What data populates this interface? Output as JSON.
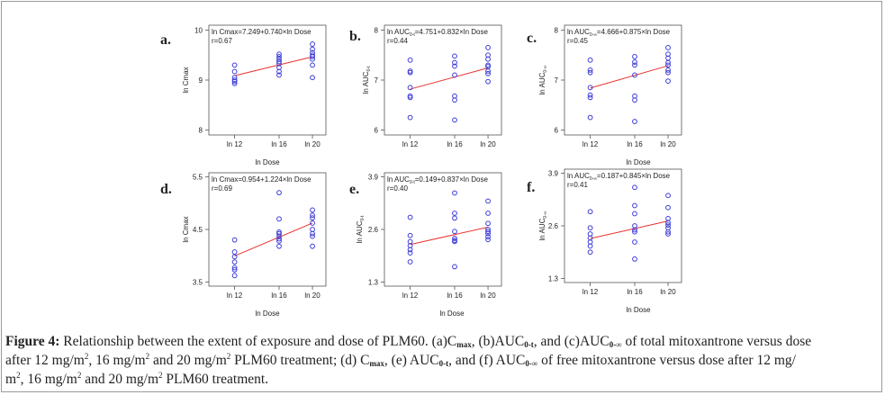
{
  "colors": {
    "point": "#3b3bd6",
    "fit_line": "#e8322e",
    "frame": "#9a9a9a",
    "axis": "#555555",
    "text": "#222222"
  },
  "chart_data": [
    {
      "panel_label": "a.",
      "type": "scatter",
      "equation_parts": [
        "ln Cmax=7.249+0.740×ln Dose"
      ],
      "r_text": "r=0.67",
      "xlabel": "ln Dose",
      "ylabel_parts": [
        "ln Cmax"
      ],
      "x_ticks": [
        "ln 12",
        "ln 16",
        "ln 20"
      ],
      "y_ticks": [
        8,
        9,
        10
      ],
      "ylim": [
        7.9,
        10.1
      ],
      "fit": {
        "intercept": 7.249,
        "slope": 0.74
      },
      "points": [
        {
          "dose": "ln 12",
          "values": [
            9.3,
            9.17,
            9.05,
            9.0,
            8.97,
            8.93
          ]
        },
        {
          "dose": "ln 16",
          "values": [
            9.52,
            9.47,
            9.42,
            9.37,
            9.33,
            9.25,
            9.17,
            9.1
          ]
        },
        {
          "dose": "ln 20",
          "values": [
            9.72,
            9.62,
            9.55,
            9.5,
            9.47,
            9.42,
            9.3,
            9.05
          ]
        }
      ]
    },
    {
      "panel_label": "b.",
      "type": "scatter",
      "equation_parts": [
        "ln AUC",
        "0-t",
        "=4.751+0.832×ln Dose"
      ],
      "r_text": "r=0.44",
      "xlabel": "",
      "ylabel_parts": [
        "ln AUC",
        "0-t"
      ],
      "x_ticks": [
        "ln 12",
        "ln 16",
        "ln 20"
      ],
      "y_ticks": [
        6,
        7,
        8
      ],
      "ylim": [
        5.9,
        8.1
      ],
      "fit": {
        "intercept": 4.751,
        "slope": 0.832
      },
      "points": [
        {
          "dose": "ln 12",
          "values": [
            7.4,
            7.18,
            7.15,
            6.85,
            6.68,
            6.65,
            6.25
          ]
        },
        {
          "dose": "ln 16",
          "values": [
            7.48,
            7.35,
            7.28,
            7.1,
            6.68,
            6.6,
            6.2
          ]
        },
        {
          "dose": "ln 20",
          "values": [
            7.65,
            7.5,
            7.42,
            7.3,
            7.27,
            7.18,
            7.13,
            6.97
          ]
        }
      ]
    },
    {
      "panel_label": "c.",
      "type": "scatter",
      "equation_parts": [
        "ln AUC",
        "0-∞",
        "=4.666+0.875×ln Dose"
      ],
      "r_text": "r=0.45",
      "xlabel": "ln Dose",
      "ylabel_parts": [
        "ln AUC",
        "0-∞"
      ],
      "x_ticks": [
        "ln 12",
        "ln 16",
        "ln 20"
      ],
      "y_ticks": [
        6,
        7,
        8
      ],
      "ylim": [
        5.9,
        8.1
      ],
      "fit": {
        "intercept": 4.666,
        "slope": 0.875
      },
      "points": [
        {
          "dose": "ln 12",
          "values": [
            7.4,
            7.2,
            7.15,
            6.85,
            6.7,
            6.65,
            6.25
          ]
        },
        {
          "dose": "ln 16",
          "values": [
            7.47,
            7.36,
            7.3,
            7.1,
            6.68,
            6.6,
            6.17
          ]
        },
        {
          "dose": "ln 20",
          "values": [
            7.65,
            7.52,
            7.44,
            7.35,
            7.3,
            7.2,
            7.15,
            6.98
          ]
        }
      ]
    },
    {
      "panel_label": "d.",
      "type": "scatter",
      "equation_parts": [
        "ln Cmax=0.954+1.224×ln Dose"
      ],
      "r_text": "r=0.69",
      "xlabel": "ln Dose",
      "ylabel_parts": [
        "ln Cmax"
      ],
      "x_ticks": [
        "ln 12",
        "ln 16",
        "ln 20"
      ],
      "y_ticks": [
        3.5,
        4.5,
        5.5
      ],
      "ylim": [
        3.42,
        5.58
      ],
      "fit": {
        "intercept": 0.954,
        "slope": 1.224
      },
      "points": [
        {
          "dose": "ln 12",
          "values": [
            4.3,
            4.07,
            3.98,
            3.88,
            3.77,
            3.73,
            3.62
          ]
        },
        {
          "dose": "ln 16",
          "values": [
            5.2,
            4.7,
            4.45,
            4.42,
            4.37,
            4.32,
            4.28,
            4.18
          ]
        },
        {
          "dose": "ln 20",
          "values": [
            4.87,
            4.77,
            4.72,
            4.62,
            4.5,
            4.42,
            4.37,
            4.18
          ]
        }
      ]
    },
    {
      "panel_label": "e.",
      "type": "scatter",
      "equation_parts": [
        "ln AUC",
        "0-t",
        "=0.149+0.837×ln Dose"
      ],
      "r_text": "r=0.40",
      "xlabel": "ln Dose",
      "ylabel_parts": [
        "ln AUC",
        "0-t"
      ],
      "x_ticks": [
        "ln 12",
        "ln 16",
        "ln 20"
      ],
      "y_ticks": [
        1.3,
        2.6,
        3.9
      ],
      "ylim": [
        1.2,
        4.0
      ],
      "fit": {
        "intercept": 0.149,
        "slope": 0.837
      },
      "points": [
        {
          "dose": "ln 12",
          "values": [
            2.9,
            2.45,
            2.3,
            2.2,
            2.1,
            2.02,
            1.8
          ]
        },
        {
          "dose": "ln 16",
          "values": [
            3.5,
            3.0,
            2.88,
            2.55,
            2.38,
            2.33,
            2.3,
            1.68
          ]
        },
        {
          "dose": "ln 20",
          "values": [
            3.3,
            3.0,
            2.75,
            2.6,
            2.55,
            2.5,
            2.42,
            2.35
          ]
        }
      ]
    },
    {
      "panel_label": "f.",
      "type": "scatter",
      "equation_parts": [
        "ln AUC",
        "0-∞",
        "=0.187+0.845×ln Dose"
      ],
      "r_text": "r=0.41",
      "xlabel": "ln Dose",
      "ylabel_parts": [
        "ln AUC",
        "0-∞"
      ],
      "x_ticks": [
        "ln 12",
        "ln 16",
        "ln 20"
      ],
      "y_ticks": [
        1.3,
        2.6,
        3.9
      ],
      "ylim": [
        1.2,
        4.0
      ],
      "fit": {
        "intercept": 0.187,
        "slope": 0.845
      },
      "points": [
        {
          "dose": "ln 12",
          "values": [
            2.95,
            2.55,
            2.4,
            2.3,
            2.2,
            2.1,
            1.95
          ]
        },
        {
          "dose": "ln 16",
          "values": [
            3.55,
            3.1,
            2.9,
            2.6,
            2.5,
            2.45,
            2.2,
            1.78
          ]
        },
        {
          "dose": "ln 20",
          "values": [
            3.35,
            3.05,
            2.78,
            2.68,
            2.62,
            2.55,
            2.45,
            2.4
          ]
        }
      ]
    }
  ],
  "caption": {
    "figure_label": "Figure 4:",
    "t1": " Relationship between the extent of exposure and dose of PLM60. (a)C",
    "s1": "max",
    "t2": ", (b)AUC",
    "s2": "0-t",
    "t3": ", and (c)AUC",
    "s3": "0-∞",
    "t4": " of total mitoxantrone versus dose",
    "t5": "after 12 mg/m",
    "p1": "2",
    "t6": ", 16 mg/m",
    "p2": "2",
    "t7": " and 20 mg/m",
    "p3": "2",
    "t8": " PLM60 treatment; (d) C",
    "s4": "max",
    "t9": ", (e) AUC",
    "s5": "0-t",
    "t10": ", and (f) AUC",
    "s6": "0-∞",
    "t11": " of free mitoxantrone versus dose after 12 mg/",
    "t12": "m",
    "p4": "2",
    "t13": ", 16 mg/m",
    "p5": "2",
    "t14": " and 20 mg/m",
    "p6": "2",
    "t15": " PLM60 treatment."
  }
}
